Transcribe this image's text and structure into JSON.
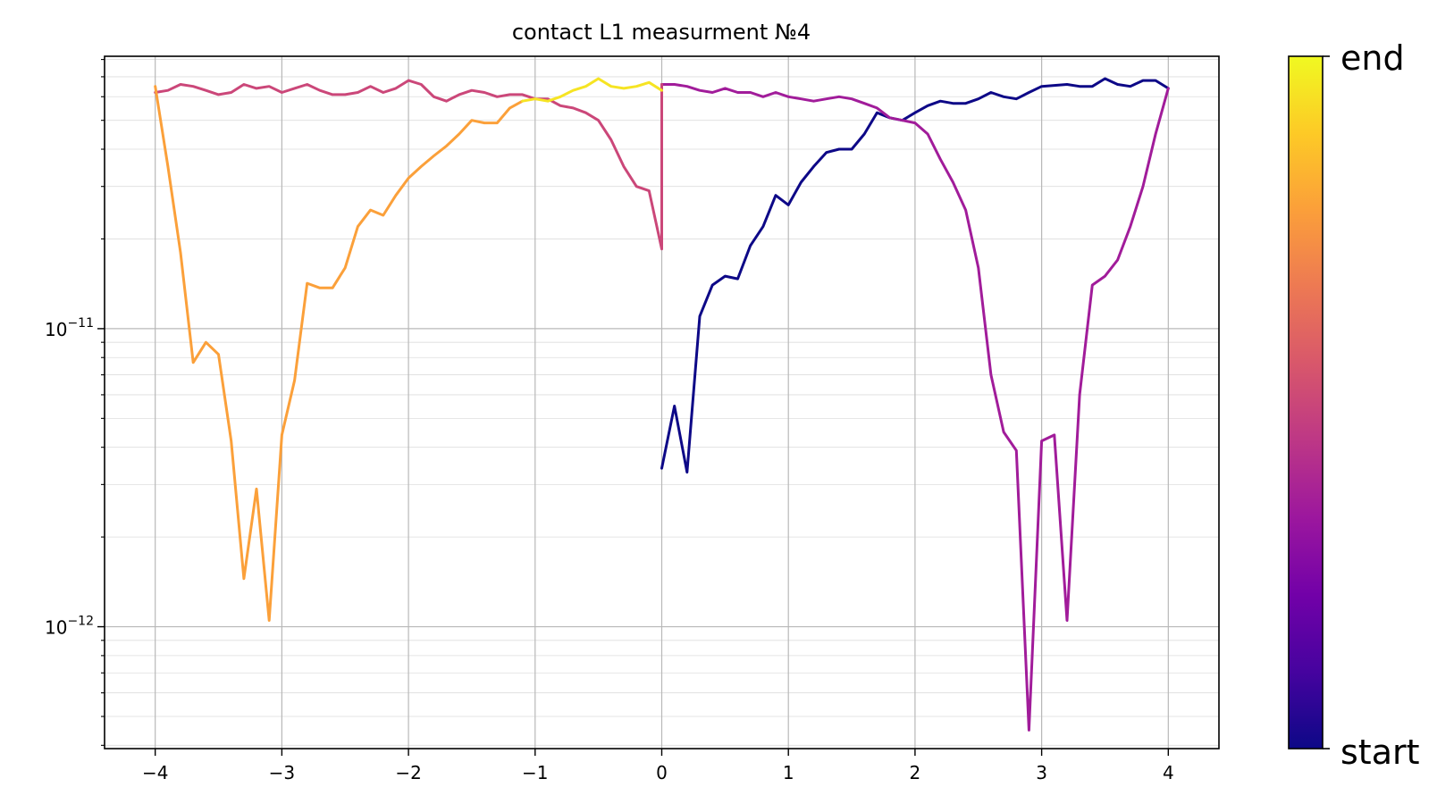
{
  "chart_data": {
    "type": "line",
    "title": "contact L1 measurment №4",
    "xlabel": "",
    "ylabel": "",
    "xlim": [
      -4.4,
      4.4
    ],
    "ylim": [
      3.9e-13,
      8.2e-11
    ],
    "yscale": "log",
    "grid": true,
    "grid_minor_y": true,
    "x_ticks": [
      -4,
      -3,
      -2,
      -1,
      0,
      1,
      2,
      3,
      4
    ],
    "x_tick_labels": [
      "−4",
      "−3",
      "−2",
      "−1",
      "0",
      "1",
      "2",
      "3",
      "4"
    ],
    "y_ticks": [
      1e-12,
      1e-11
    ],
    "y_tick_labels": [
      {
        "base": "10",
        "exp": "−12"
      },
      {
        "base": "10",
        "exp": "−11"
      }
    ],
    "colormap": "plasma",
    "colorbar_labels": {
      "top": "end",
      "bottom": "start"
    },
    "colors": {
      "plasma_stops": [
        "#0d0887",
        "#46039f",
        "#7201a8",
        "#9c179e",
        "#bd3786",
        "#d8576b",
        "#ed7953",
        "#fb9f3a",
        "#fdca26",
        "#f0f921"
      ]
    },
    "segments": [
      {
        "color_t": 0.0,
        "x": [
          0.0,
          0.1,
          0.2,
          0.3,
          0.4,
          0.5,
          0.6,
          0.7,
          0.8,
          0.9,
          1.0,
          1.1,
          1.2,
          1.3,
          1.4,
          1.5,
          1.6,
          1.7,
          1.8,
          1.9,
          2.0,
          2.1,
          2.2,
          2.3,
          2.4,
          2.5,
          2.6,
          2.7,
          2.8,
          2.9,
          3.0,
          3.1,
          3.2,
          3.3,
          3.4,
          3.5,
          3.6,
          3.7,
          3.8,
          3.9,
          4.0
        ],
        "y": [
          3.4e-12,
          5.5e-12,
          3.3e-12,
          1.1e-11,
          1.4e-11,
          1.5e-11,
          1.47e-11,
          1.9e-11,
          2.2e-11,
          2.8e-11,
          2.6e-11,
          3.1e-11,
          3.5e-11,
          3.9e-11,
          4e-11,
          4e-11,
          4.5e-11,
          5.3e-11,
          5.1e-11,
          5e-11,
          5.3e-11,
          5.6e-11,
          5.8e-11,
          5.7e-11,
          5.7e-11,
          5.9e-11,
          6.2e-11,
          6e-11,
          5.9e-11,
          6.2e-11,
          6.5e-11,
          6.55e-11,
          6.6e-11,
          6.5e-11,
          6.5e-11,
          6.9e-11,
          6.6e-11,
          6.5e-11,
          6.8e-11,
          6.8e-11,
          6.4e-11
        ]
      },
      {
        "color_t": 0.35,
        "x": [
          4.0,
          3.9,
          3.8,
          3.7,
          3.6,
          3.5,
          3.4,
          3.3,
          3.2,
          3.1,
          3.0,
          2.9,
          2.8,
          2.7,
          2.6,
          2.5,
          2.4,
          2.3,
          2.2,
          2.1,
          2.0,
          1.9,
          1.8,
          1.7,
          1.6,
          1.5,
          1.4,
          1.3,
          1.2,
          1.1,
          1.0,
          0.9,
          0.8,
          0.7,
          0.6,
          0.5,
          0.4,
          0.3,
          0.2,
          0.1,
          0.0
        ],
        "y": [
          6.4e-11,
          4.5e-11,
          3e-11,
          2.2e-11,
          1.7e-11,
          1.5e-11,
          1.4e-11,
          6e-12,
          1.05e-12,
          4.4e-12,
          4.2e-12,
          4.5e-13,
          3.9e-12,
          4.5e-12,
          7e-12,
          1.6e-11,
          2.5e-11,
          3.1e-11,
          3.7e-11,
          4.5e-11,
          4.9e-11,
          5e-11,
          5.1e-11,
          5.5e-11,
          5.7e-11,
          5.9e-11,
          6e-11,
          5.9e-11,
          5.8e-11,
          5.9e-11,
          6e-11,
          6.2e-11,
          6e-11,
          6.2e-11,
          6.2e-11,
          6.4e-11,
          6.2e-11,
          6.3e-11,
          6.5e-11,
          6.6e-11,
          6.6e-11
        ]
      },
      {
        "color_t": 0.5,
        "x": [
          0.0,
          0.0,
          -0.1,
          -0.2,
          -0.3,
          -0.4,
          -0.5,
          -0.6,
          -0.7,
          -0.8,
          -0.9,
          -1.0,
          -1.1,
          -1.2,
          -1.3,
          -1.4,
          -1.5,
          -1.6,
          -1.7,
          -1.8,
          -1.9,
          -2.0,
          -2.1,
          -2.2,
          -2.3,
          -2.4,
          -2.5,
          -2.6,
          -2.7,
          -2.8,
          -2.9,
          -3.0,
          -3.1,
          -3.2,
          -3.3,
          -3.4,
          -3.5,
          -3.6,
          -3.7,
          -3.8,
          -3.9,
          -4.0
        ],
        "y": [
          6.6e-11,
          1.85e-11,
          2.9e-11,
          3e-11,
          3.5e-11,
          4.3e-11,
          5e-11,
          5.3e-11,
          5.5e-11,
          5.6e-11,
          5.9e-11,
          5.9e-11,
          6.1e-11,
          6.1e-11,
          6e-11,
          6.2e-11,
          6.3e-11,
          6.1e-11,
          5.8e-11,
          6e-11,
          6.6e-11,
          6.8e-11,
          6.4e-11,
          6.2e-11,
          6.5e-11,
          6.2e-11,
          6.1e-11,
          6.1e-11,
          6.3e-11,
          6.6e-11,
          6.4e-11,
          6.2e-11,
          6.5e-11,
          6.4e-11,
          6.6e-11,
          6.2e-11,
          6.1e-11,
          6.3e-11,
          6.5e-11,
          6.6e-11,
          6.3e-11,
          6.2e-11
        ]
      },
      {
        "color_t": 0.78,
        "x": [
          -4.0,
          -3.9,
          -3.8,
          -3.7,
          -3.6,
          -3.5,
          -3.4,
          -3.3,
          -3.2,
          -3.1,
          -3.0,
          -2.9,
          -2.8,
          -2.7,
          -2.6,
          -2.5,
          -2.4,
          -2.3,
          -2.2,
          -2.1,
          -2.0,
          -1.9,
          -1.8,
          -1.7,
          -1.6,
          -1.5,
          -1.4,
          -1.3,
          -1.2,
          -1.1
        ],
        "y": [
          6.5e-11,
          3.5e-11,
          1.8e-11,
          7.7e-12,
          9e-12,
          8.2e-12,
          4.2e-12,
          1.45e-12,
          2.9e-12,
          1.05e-12,
          4.4e-12,
          6.7e-12,
          1.42e-11,
          1.37e-11,
          1.37e-11,
          1.6e-11,
          2.2e-11,
          2.5e-11,
          2.4e-11,
          2.8e-11,
          3.2e-11,
          3.5e-11,
          3.8e-11,
          4.1e-11,
          4.5e-11,
          5e-11,
          4.9e-11,
          4.9e-11,
          5.5e-11,
          5.8e-11
        ]
      },
      {
        "color_t": 0.95,
        "x": [
          -1.1,
          -1.0,
          -0.9,
          -0.8,
          -0.7,
          -0.6,
          -0.5,
          -0.4,
          -0.3,
          -0.2,
          -0.1,
          0.0
        ],
        "y": [
          5.8e-11,
          5.9e-11,
          5.8e-11,
          6e-11,
          6.3e-11,
          6.5e-11,
          6.9e-11,
          6.5e-11,
          6.4e-11,
          6.5e-11,
          6.7e-11,
          6.3e-11
        ]
      }
    ]
  }
}
